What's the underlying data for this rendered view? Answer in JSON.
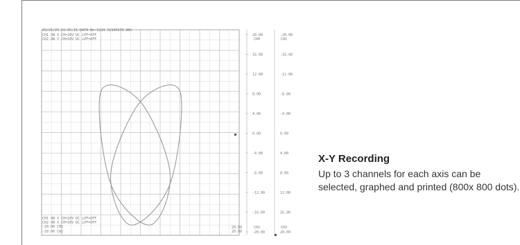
{
  "printout": {
    "header_line1": "02/21/25 11:05:21 DATA No.1234 12345678 ABC",
    "header_line2": "CH1 ON  X  CH=10V DC  LPF=OFF",
    "header_line3": "CH2 ON  Y  CH=10V DC  LPF=OFF",
    "footer_line1": "CH1 ON  X  CH=10V DC  LPF=OFF",
    "footer_line2": "CH2 ON  X  CH=10V DC  LPF=OFF",
    "footer_line3": "-20.00  CH1",
    "footer_line4": "-20.00  CH2",
    "bottom_right_1": "20.00",
    "bottom_right_2": "20.00",
    "ch_left_label": "CH4",
    "ch_right_label": "CH2",
    "ch_left_bottom": "CH2",
    "ch_right_bottom": "CH3",
    "left_scale": [
      "20.00",
      "16.00",
      "12.00",
      "8.00",
      "4.00",
      "0.00",
      "-4.00",
      "-8.00",
      "-12.00",
      "-16.00",
      "-20.00"
    ],
    "right_scale": [
      "-20.00",
      "-16.00",
      "-12.00",
      "-8.00",
      "-4.00",
      "0.00",
      "4.00",
      "8.00",
      "12.00",
      "16.00",
      "20.00"
    ],
    "line_color": "#9a9a9a",
    "grid_color": "#d2d2d2",
    "grid_major_color": "#bdbdbd",
    "chart_data": {
      "type": "scatter",
      "title": "",
      "xlabel": "",
      "ylabel": "",
      "note": "Two crossed elliptical X-Y traces (Lissajous figures) on a 10x10 grid",
      "series": [
        {
          "points": [
            [
              -4,
              4
            ],
            [
              0,
              3
            ],
            [
              3,
              -4
            ],
            [
              1,
              -9
            ],
            [
              -3,
              -5
            ],
            [
              -4,
              4
            ]
          ]
        },
        {
          "points": [
            [
              4,
              4
            ],
            [
              0,
              3
            ],
            [
              -3,
              -4
            ],
            [
              -1,
              -9
            ],
            [
              3,
              -5
            ],
            [
              4,
              4
            ]
          ]
        }
      ]
    }
  },
  "caption": {
    "title": "X-Y Recording",
    "body": "Up to 3 channels for each axis can be selected, graphed and printed (800x 800 dots)."
  }
}
